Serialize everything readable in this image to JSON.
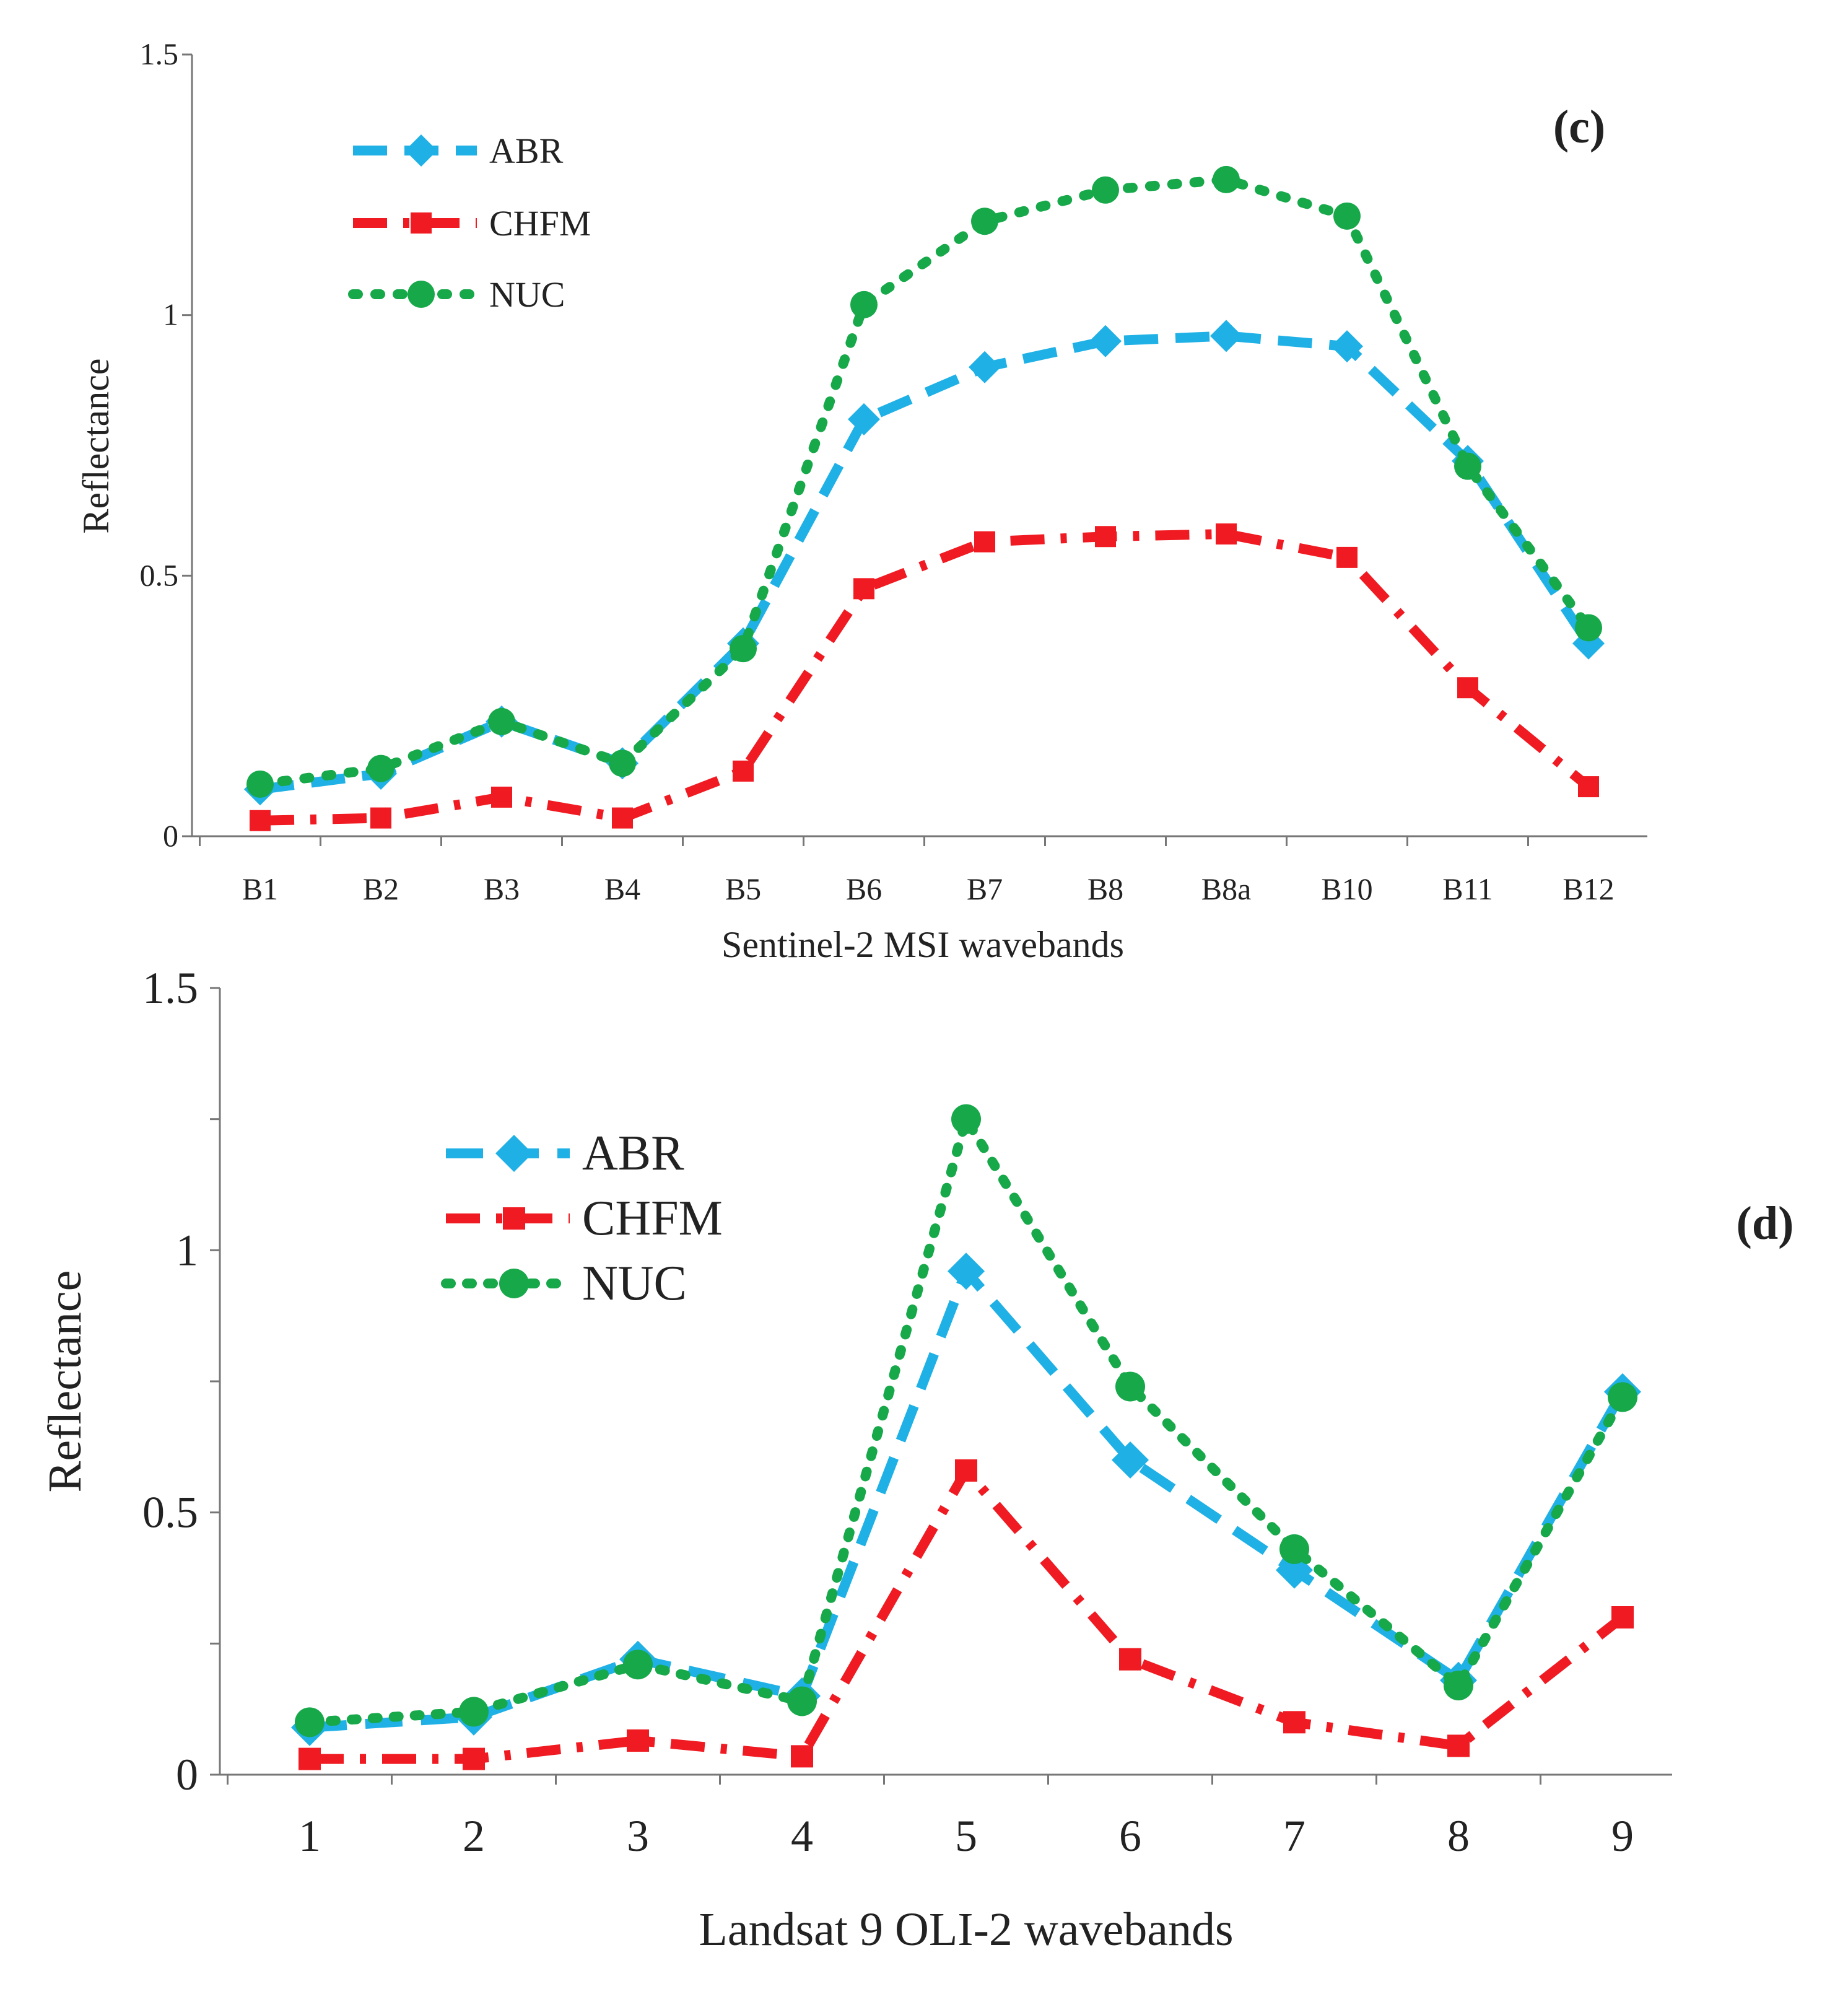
{
  "chart_data": [
    {
      "type": "line",
      "panel_label": "(c)",
      "xlabel": "Sentinel-2 MSI wavebands",
      "ylabel": "Reflectance",
      "ylim": [
        0,
        1.5
      ],
      "yticks": [
        "0",
        "0.5",
        "1",
        "1.5"
      ],
      "categories": [
        "B1",
        "B2",
        "B3",
        "B4",
        "B5",
        "B6",
        "B7",
        "B8",
        "B8a",
        "B10",
        "B11",
        "B12"
      ],
      "legend_position": "top-left",
      "series": [
        {
          "name": "ABR",
          "color": "#1fb1e6",
          "values": [
            0.09,
            0.12,
            0.22,
            0.14,
            0.37,
            0.8,
            0.9,
            0.95,
            0.96,
            0.94,
            0.72,
            0.37
          ]
        },
        {
          "name": "CHFM",
          "color": "#f01b22",
          "values": [
            0.03,
            0.035,
            0.075,
            0.035,
            0.125,
            0.475,
            0.565,
            0.575,
            0.58,
            0.535,
            0.285,
            0.095
          ]
        },
        {
          "name": "NUC",
          "color": "#17a84a",
          "values": [
            0.1,
            0.13,
            0.22,
            0.14,
            0.36,
            1.02,
            1.18,
            1.24,
            1.26,
            1.19,
            0.71,
            0.4
          ]
        }
      ]
    },
    {
      "type": "line",
      "panel_label": "(d)",
      "xlabel": "Landsat  9 OLI-2 wavebands",
      "ylabel": "Reflectance",
      "ylim": [
        0,
        1.5
      ],
      "yticks": [
        "0",
        "0.5",
        "1",
        "1.5"
      ],
      "categories": [
        "1",
        "2",
        "3",
        "4",
        "5",
        "6",
        "7",
        "8",
        "9"
      ],
      "legend_position": "top-left",
      "series": [
        {
          "name": "ABR",
          "color": "#1fb1e6",
          "values": [
            0.09,
            0.11,
            0.22,
            0.15,
            0.96,
            0.6,
            0.39,
            0.18,
            0.73
          ]
        },
        {
          "name": "CHFM",
          "color": "#f01b22",
          "values": [
            0.03,
            0.03,
            0.065,
            0.035,
            0.58,
            0.22,
            0.1,
            0.055,
            0.3
          ]
        },
        {
          "name": "NUC",
          "color": "#17a84a",
          "values": [
            0.1,
            0.12,
            0.21,
            0.14,
            1.25,
            0.74,
            0.43,
            0.17,
            0.72
          ]
        }
      ]
    }
  ]
}
